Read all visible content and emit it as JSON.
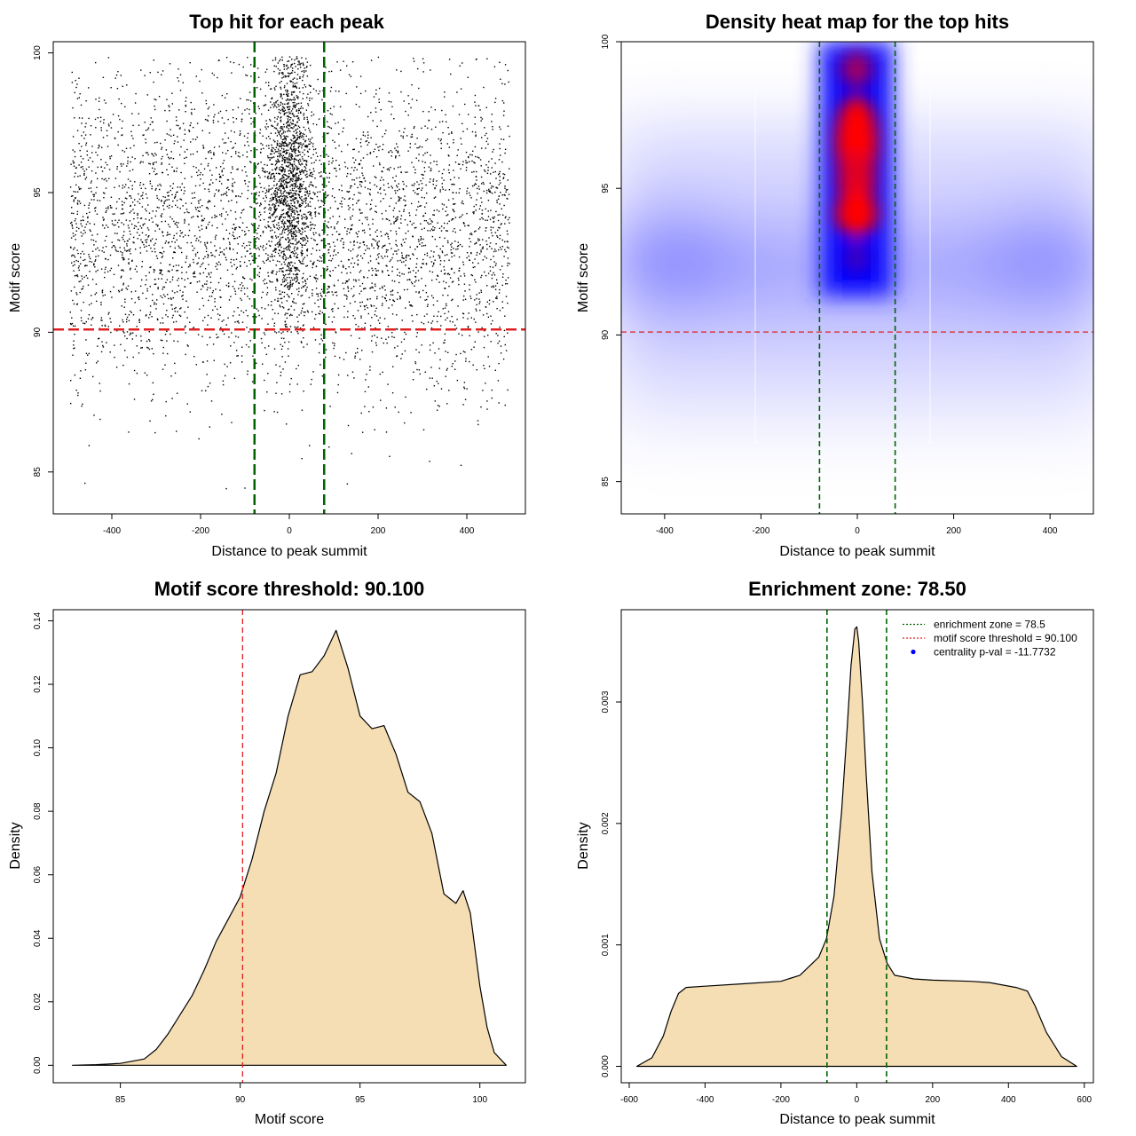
{
  "chart_data": [
    {
      "type": "scatter",
      "title": "Top hit for each peak",
      "xlabel": "Distance to peak summit",
      "ylabel": "Motif score",
      "xlim": [
        -532,
        532
      ],
      "ylim": [
        83.5,
        100.4
      ],
      "xticks": [
        -400,
        -200,
        0,
        200,
        400
      ],
      "yticks": [
        85,
        90,
        95,
        100
      ],
      "threshold": 90.1,
      "enrichment_zone": 78.5,
      "threshold_color": "#e02020",
      "zone_color": "#006400",
      "point_color": "#000000",
      "distribution": {
        "n_background": 4200,
        "n_center": 1400,
        "center_sd": 26,
        "x_range": [
          -495,
          495
        ],
        "score_mean": 93.6,
        "score_sd": 2.7,
        "score_max": 99.9
      }
    },
    {
      "type": "heatmap",
      "title": "Density heat map for the top hits",
      "xlabel": "Distance to peak summit",
      "ylabel": "Motif score",
      "xlim": [
        -490,
        490
      ],
      "ylim": [
        83.9,
        100.0
      ],
      "xticks": [
        -400,
        -200,
        0,
        200,
        400
      ],
      "yticks": [
        85,
        90,
        95,
        100
      ],
      "threshold": 90.1,
      "enrichment_zone": 78.5,
      "color_scale": [
        "#ffffff",
        "#8080ff",
        "#0000ff",
        "#ff0000"
      ],
      "density_hotspots": [
        {
          "x": 0,
          "y": 97.3,
          "level": "high"
        },
        {
          "x": 0,
          "y": 94.3,
          "level": "high"
        },
        {
          "x": 0,
          "y": 99.4,
          "level": "medium"
        },
        {
          "x": -420,
          "y": 92.8,
          "level": "low"
        },
        {
          "x": 420,
          "y": 92.8,
          "level": "low"
        }
      ]
    },
    {
      "type": "area",
      "title": "Motif score threshold: 90.100",
      "xlabel": "Motif score",
      "ylabel": "Density",
      "xlim": [
        82.2,
        101.9
      ],
      "ylim": [
        -0.0055,
        0.1435
      ],
      "xticks": [
        85,
        90,
        95,
        100
      ],
      "yticks": [
        0.0,
        0.02,
        0.04,
        0.06,
        0.08,
        0.1,
        0.12,
        0.14
      ],
      "ytick_labels": [
        "0.00",
        "0.02",
        "0.04",
        "0.06",
        "0.08",
        "0.10",
        "0.12",
        "0.14"
      ],
      "threshold": 90.1,
      "fill_color": "#f5deb3",
      "threshold_color": "#e02020",
      "x": [
        83.0,
        84.0,
        85.0,
        86.0,
        86.5,
        87.0,
        87.5,
        88.0,
        88.5,
        89.0,
        89.5,
        90.0,
        90.5,
        91.0,
        91.5,
        92.0,
        92.5,
        93.0,
        93.5,
        94.0,
        94.5,
        95.0,
        95.5,
        96.0,
        96.5,
        97.0,
        97.5,
        98.0,
        98.5,
        99.0,
        99.3,
        99.6,
        100.0,
        100.3,
        100.6,
        101.1
      ],
      "y": [
        0.0,
        0.0002,
        0.0006,
        0.002,
        0.005,
        0.01,
        0.016,
        0.022,
        0.03,
        0.039,
        0.046,
        0.053,
        0.065,
        0.08,
        0.092,
        0.11,
        0.123,
        0.124,
        0.129,
        0.137,
        0.125,
        0.11,
        0.106,
        0.107,
        0.098,
        0.086,
        0.083,
        0.073,
        0.054,
        0.051,
        0.055,
        0.048,
        0.025,
        0.012,
        0.004,
        0.0
      ]
    },
    {
      "type": "area",
      "title": "Enrichment zone: 78.50",
      "xlabel": "Distance to peak summit",
      "ylabel": "Density",
      "xlim": [
        -621,
        624
      ],
      "ylim": [
        -0.000135,
        0.00376
      ],
      "xticks": [
        -600,
        -400,
        -200,
        0,
        200,
        400,
        600
      ],
      "yticks": [
        0.0,
        0.001,
        0.002,
        0.003
      ],
      "ytick_labels": [
        "0.000",
        "0.001",
        "0.002",
        "0.003"
      ],
      "enrichment_zone": 78.5,
      "fill_color": "#f5deb3",
      "zone_color": "#006400",
      "x": [
        -580,
        -540,
        -510,
        -490,
        -470,
        -450,
        -400,
        -300,
        -200,
        -150,
        -100,
        -80,
        -60,
        -40,
        -25,
        -15,
        -5,
        0,
        5,
        15,
        25,
        40,
        60,
        80,
        100,
        150,
        200,
        300,
        350,
        420,
        450,
        470,
        500,
        540,
        580
      ],
      "y": [
        0.0,
        7e-05,
        0.00025,
        0.00045,
        0.0006,
        0.00065,
        0.00066,
        0.00068,
        0.0007,
        0.00075,
        0.0009,
        0.00105,
        0.0014,
        0.0021,
        0.0028,
        0.0033,
        0.0036,
        0.00362,
        0.0035,
        0.003,
        0.0024,
        0.0016,
        0.00105,
        0.00085,
        0.00075,
        0.00072,
        0.00071,
        0.0007,
        0.00069,
        0.00065,
        0.00062,
        0.0005,
        0.00028,
        8e-05,
        0.0
      ],
      "legend": [
        {
          "label": "enrichment zone = 78.5",
          "color": "#006400",
          "kind": "dotted-line"
        },
        {
          "label": "motif score threshold = 90.100",
          "color": "#e02020",
          "kind": "dotted-line"
        },
        {
          "label": "centrality p-val = -11.7732",
          "color": "#0000ff",
          "kind": "point"
        }
      ]
    }
  ]
}
